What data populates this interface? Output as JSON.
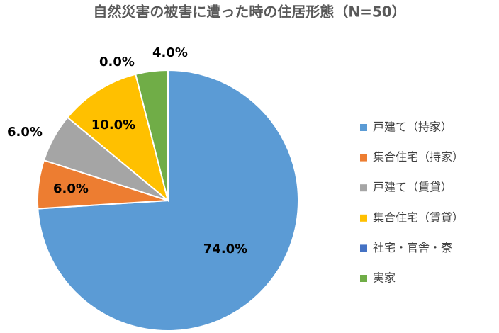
{
  "chart_data": {
    "type": "pie",
    "title": "自然災害の被害に遭った時の住居形態（N=50）",
    "categories": [
      "戸建て（持家）",
      "集合住宅（持家）",
      "戸建て（賃貸）",
      "集合住宅（賃貸）",
      "社宅・官舎・寮",
      "実家"
    ],
    "values": [
      74,
      6,
      6,
      10,
      0,
      4
    ],
    "value_labels": [
      "74.0%",
      "6.0%",
      "6.0%",
      "10.0%",
      "0.0%",
      "4.0%"
    ],
    "colors": [
      "#5b9bd5",
      "#ed7d31",
      "#a5a5a5",
      "#ffc000",
      "#4472c4",
      "#70ad47"
    ],
    "legend": "right"
  }
}
